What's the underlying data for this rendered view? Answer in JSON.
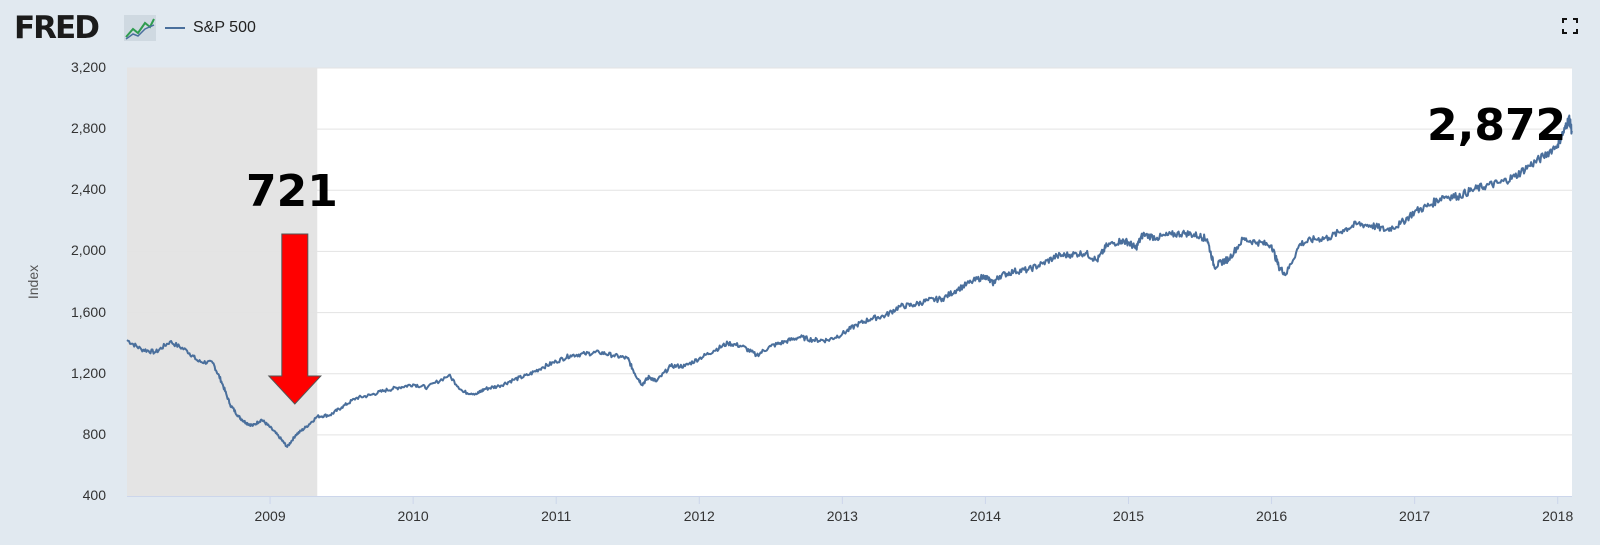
{
  "header": {
    "logo_text": "FRED",
    "legend_label": "S&P 500",
    "icons": [
      "fred-logo-chart-icon",
      "fullscreen-icon"
    ]
  },
  "colors": {
    "series": "#4a6f9c",
    "recession": "#e4e4e4",
    "arrow": "#ff0000",
    "background": "#e1e9f0"
  },
  "annotations": {
    "low_label": "721",
    "high_label": "2,872"
  },
  "chart_data": {
    "type": "line",
    "title": "",
    "ylabel": "Index",
    "xlabel": "",
    "x_range": [
      2008.0,
      2018.1
    ],
    "ylim": [
      400,
      3200
    ],
    "y_ticks": [
      "400",
      "800",
      "1,200",
      "1,600",
      "2,000",
      "2,400",
      "2,800",
      "3,200"
    ],
    "y_tick_values": [
      400,
      800,
      1200,
      1600,
      2000,
      2400,
      2800,
      3200
    ],
    "x_ticks": [
      "2009",
      "2010",
      "2011",
      "2012",
      "2013",
      "2014",
      "2015",
      "2016",
      "2017",
      "2018"
    ],
    "x_tick_values": [
      2009,
      2010,
      2011,
      2012,
      2013,
      2014,
      2015,
      2016,
      2017,
      2018
    ],
    "recession_shading": [
      2008.0,
      2009.33
    ],
    "grid": "horizontal",
    "series": [
      {
        "name": "S&P 500",
        "x": [
          2008.0,
          2008.1,
          2008.2,
          2008.3,
          2008.42,
          2008.5,
          2008.6,
          2008.66,
          2008.72,
          2008.78,
          2008.83,
          2008.88,
          2008.94,
          2009.0,
          2009.07,
          2009.12,
          2009.18,
          2009.25,
          2009.33,
          2009.42,
          2009.5,
          2009.6,
          2009.7,
          2009.8,
          2009.9,
          2010.0,
          2010.1,
          2010.25,
          2010.35,
          2010.45,
          2010.5,
          2010.6,
          2010.7,
          2010.8,
          2010.9,
          2011.0,
          2011.1,
          2011.2,
          2011.3,
          2011.4,
          2011.5,
          2011.55,
          2011.6,
          2011.65,
          2011.7,
          2011.8,
          2011.9,
          2012.0,
          2012.1,
          2012.2,
          2012.3,
          2012.4,
          2012.5,
          2012.6,
          2012.7,
          2012.8,
          2012.9,
          2013.0,
          2013.1,
          2013.2,
          2013.3,
          2013.4,
          2013.5,
          2013.6,
          2013.7,
          2013.8,
          2013.9,
          2014.0,
          2014.05,
          2014.1,
          2014.2,
          2014.3,
          2014.4,
          2014.5,
          2014.6,
          2014.7,
          2014.78,
          2014.85,
          2014.95,
          2015.0,
          2015.05,
          2015.1,
          2015.2,
          2015.3,
          2015.4,
          2015.5,
          2015.55,
          2015.6,
          2015.65,
          2015.7,
          2015.8,
          2015.9,
          2016.0,
          2016.05,
          2016.1,
          2016.2,
          2016.3,
          2016.4,
          2016.5,
          2016.6,
          2016.7,
          2016.8,
          2016.9,
          2017.0,
          2017.1,
          2017.2,
          2017.3,
          2017.4,
          2017.5,
          2017.6,
          2017.7,
          2017.8,
          2017.9,
          2018.0,
          2018.05,
          2018.08,
          2018.1
        ],
        "y": [
          1420,
          1360,
          1340,
          1410,
          1350,
          1280,
          1270,
          1150,
          1000,
          920,
          880,
          860,
          900,
          850,
          780,
          721,
          800,
          850,
          920,
          930,
          980,
          1040,
          1060,
          1090,
          1110,
          1130,
          1110,
          1190,
          1080,
          1070,
          1100,
          1120,
          1160,
          1190,
          1240,
          1280,
          1320,
          1330,
          1340,
          1320,
          1300,
          1200,
          1130,
          1180,
          1150,
          1250,
          1250,
          1300,
          1350,
          1400,
          1380,
          1320,
          1380,
          1410,
          1440,
          1420,
          1420,
          1460,
          1520,
          1560,
          1580,
          1640,
          1650,
          1680,
          1690,
          1750,
          1800,
          1840,
          1790,
          1840,
          1870,
          1880,
          1920,
          1970,
          1980,
          1990,
          1940,
          2040,
          2070,
          2060,
          2020,
          2110,
          2090,
          2110,
          2120,
          2100,
          2080,
          1900,
          1930,
          1950,
          2080,
          2060,
          2040,
          1900,
          1850,
          2050,
          2080,
          2090,
          2140,
          2180,
          2170,
          2140,
          2180,
          2260,
          2300,
          2360,
          2360,
          2400,
          2430,
          2450,
          2490,
          2560,
          2620,
          2700,
          2800,
          2872,
          2780
        ]
      }
    ]
  }
}
